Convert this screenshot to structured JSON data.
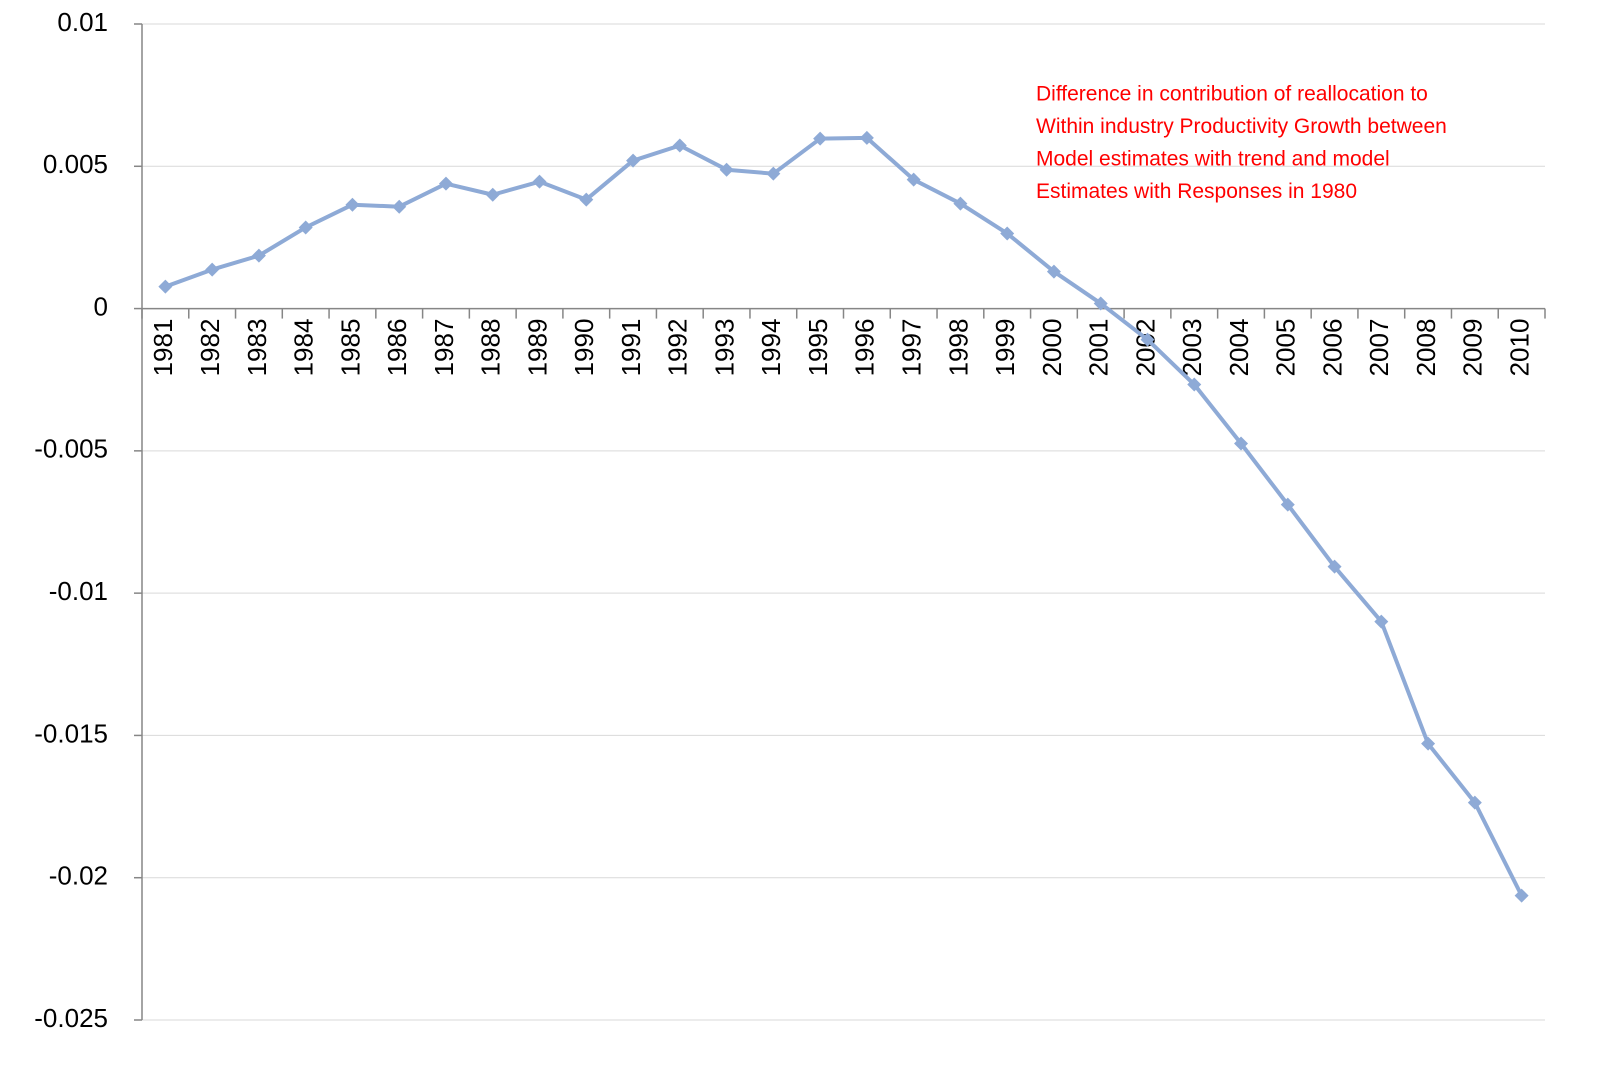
{
  "chart_data": {
    "type": "line",
    "annotation": [
      "Difference in contribution of reallocation to",
      "Within industry Productivity Growth between",
      "Model estimates with trend and model",
      "Estimates with Responses in 1980"
    ],
    "annotation_color": "#ff0000",
    "categories": [
      "1981",
      "1982",
      "1983",
      "1984",
      "1985",
      "1986",
      "1987",
      "1988",
      "1989",
      "1990",
      "1991",
      "1992",
      "1993",
      "1994",
      "1995",
      "1996",
      "1997",
      "1998",
      "1999",
      "2000",
      "2001",
      "2002",
      "2003",
      "2004",
      "2005",
      "2006",
      "2007",
      "2008",
      "2009",
      "2010"
    ],
    "values": [
      0.00077,
      0.00137,
      0.00186,
      0.00285,
      0.00365,
      0.00358,
      0.00439,
      0.004,
      0.00446,
      0.00383,
      0.0052,
      0.00573,
      0.00488,
      0.00474,
      0.00597,
      0.006,
      0.00453,
      0.00369,
      0.00264,
      0.0013,
      0.00018,
      -0.00109,
      -0.00267,
      -0.00474,
      -0.00689,
      -0.00907,
      -0.011,
      -0.01529,
      -0.01736,
      -0.02063
    ],
    "color": "#8eaad6",
    "ylim": [
      -0.025,
      0.01
    ],
    "yticks": [
      -0.025,
      -0.02,
      -0.015,
      -0.01,
      -0.005,
      0,
      0.005,
      0.01
    ],
    "grid": true
  }
}
